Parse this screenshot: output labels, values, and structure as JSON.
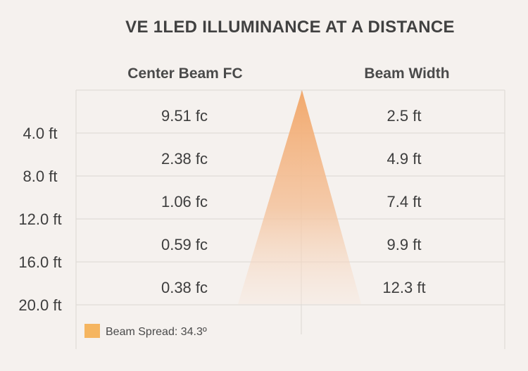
{
  "chart_data": {
    "type": "table",
    "title": "VE 1LED ILLUMINANCE AT A DISTANCE",
    "columns": [
      "Center Beam FC",
      "Beam Width"
    ],
    "distances": [
      "4.0 ft",
      "8.0 ft",
      "12.0 ft",
      "16.0 ft",
      "20.0 ft"
    ],
    "center_beam_fc": [
      "9.51 fc",
      "2.38 fc",
      "1.06 fc",
      "0.59 fc",
      "0.38 fc"
    ],
    "beam_width": [
      "2.5 ft",
      "4.9 ft",
      "7.4 ft",
      "9.9 ft",
      "12.3 ft"
    ],
    "beam_color": "#f2a96d",
    "legend": {
      "label": "Beam Spread: 34.3º",
      "color": "#f5b560"
    }
  }
}
